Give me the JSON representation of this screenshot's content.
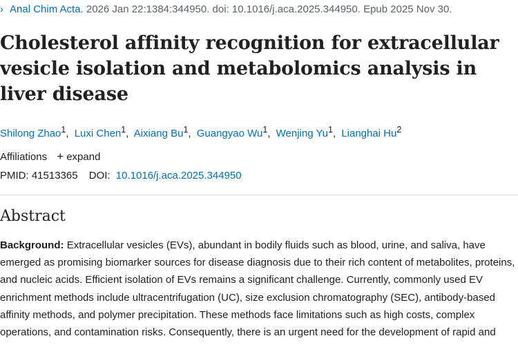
{
  "citation": {
    "chevron": "›",
    "journal": "Anal Chim Acta.",
    "details": "2026 Jan 22:1384:344950. doi: 10.1016/j.aca.2025.344950. Epub 2025 Nov 30."
  },
  "title": "Cholesterol affinity recognition for extracellular vesicle isolation and metabolomics analysis in liver disease",
  "authors": [
    {
      "name": "Shilong Zhao",
      "aff": "1"
    },
    {
      "name": "Luxi Chen",
      "aff": "1"
    },
    {
      "name": "Aixiang Bu",
      "aff": "1"
    },
    {
      "name": "Guangyao Wu",
      "aff": "1"
    },
    {
      "name": "Wenjing Yu",
      "aff": "1"
    },
    {
      "name": "Lianghai Hu",
      "aff": "2"
    }
  ],
  "author_separator": ",",
  "affiliations": {
    "label": "Affiliations",
    "expand_icon": "+",
    "expand_label": "expand"
  },
  "ids": {
    "pmid_label": "PMID:",
    "pmid": "41513365",
    "doi_label": "DOI:",
    "doi": "10.1016/j.aca.2025.344950"
  },
  "abstract": {
    "heading": "Abstract",
    "lead": "Background:",
    "text": "Extracellular vesicles (EVs), abundant in bodily fluids such as blood, urine, and saliva, have emerged as promising biomarker sources for disease diagnosis due to their rich content of metabolites, proteins, and nucleic acids. Efficient isolation of EVs remains a significant challenge. Currently, commonly used EV enrichment methods include ultracentrifugation (UC), size exclusion chromatography (SEC), antibody-based affinity methods, and polymer precipitation. These methods face limitations such as high costs, complex operations, and contamination risks. Consequently, there is an urgent need for the development of rapid and efficient methods for EV isolation."
  },
  "colors": {
    "link": "#0071bc",
    "text": "#212121",
    "muted": "#5b616b"
  }
}
